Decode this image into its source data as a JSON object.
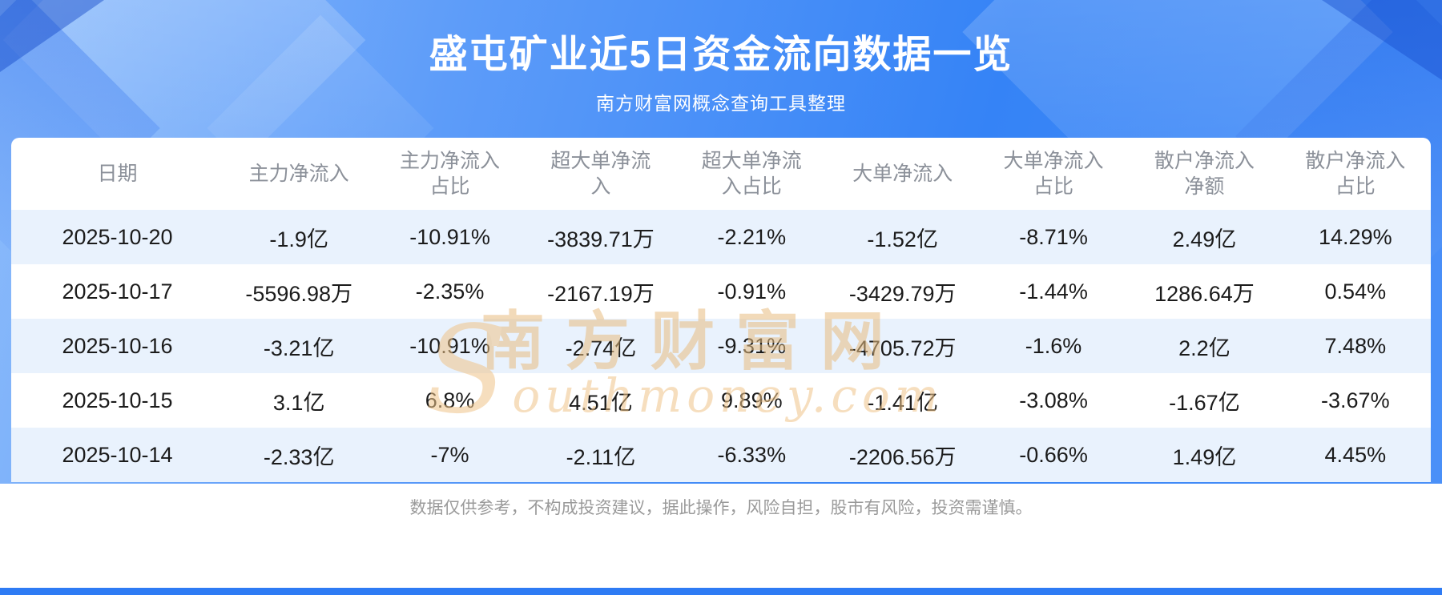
{
  "header": {
    "title": "盛屯矿业近5日资金流向数据一览",
    "subtitle": "南方财富网概念查询工具整理"
  },
  "chart_data": {
    "type": "table",
    "title": "盛屯矿业近5日资金流向数据一览",
    "columns": [
      "日期",
      "主力净流入",
      "主力净流入占比",
      "超大单净流入",
      "超大单净流入占比",
      "大单净流入",
      "大单净流入占比",
      "散户净流入净额",
      "散户净流入占比"
    ],
    "rows": [
      [
        "2025-10-20",
        "-1.9亿",
        "-10.91%",
        "-3839.71万",
        "-2.21%",
        "-1.52亿",
        "-8.71%",
        "2.49亿",
        "14.29%"
      ],
      [
        "2025-10-17",
        "-5596.98万",
        "-2.35%",
        "-2167.19万",
        "-0.91%",
        "-3429.79万",
        "-1.44%",
        "1286.64万",
        "0.54%"
      ],
      [
        "2025-10-16",
        "-3.21亿",
        "-10.91%",
        "-2.74亿",
        "-9.31%",
        "-4705.72万",
        "-1.6%",
        "2.2亿",
        "7.48%"
      ],
      [
        "2025-10-15",
        "3.1亿",
        "6.8%",
        "4.51亿",
        "9.89%",
        "-1.41亿",
        "-3.08%",
        "-1.67亿",
        "-3.67%"
      ],
      [
        "2025-10-14",
        "-2.33亿",
        "-7%",
        "-2.11亿",
        "-6.33%",
        "-2206.56万",
        "-0.66%",
        "1.49亿",
        "4.45%"
      ]
    ]
  },
  "watermark": {
    "cn": "南方财富网",
    "en": "Southmoney.com"
  },
  "footer": {
    "disclaimer": "数据仅供参考，不构成投资建议，据此操作，风险自担，股市有风险，投资需谨慎。"
  },
  "colors": {
    "hero_gradient_start": "#8dbcfb",
    "hero_gradient_end": "#3583f6",
    "row_alt": "#e9f2fd",
    "accent_bar": "#2e7bf4",
    "header_text": "#8b9099",
    "data_text": "#1b1b1b",
    "watermark": "#eec893"
  }
}
